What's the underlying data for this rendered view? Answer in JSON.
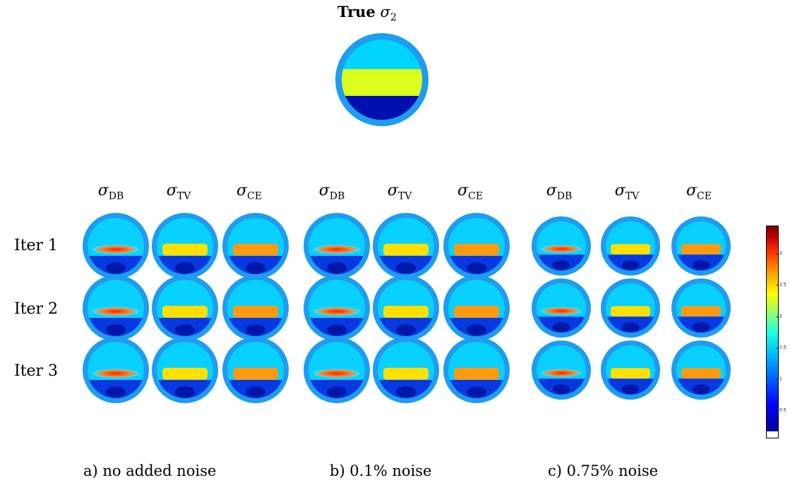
{
  "true_panel": {
    "title_bold": "True",
    "title_symbol": "σ",
    "title_sub": "2"
  },
  "column_headers": [
    {
      "symbol": "σ",
      "sub": "DB"
    },
    {
      "symbol": "σ",
      "sub": "TV"
    },
    {
      "symbol": "σ",
      "sub": "CE"
    },
    {
      "symbol": "σ",
      "sub": "DB"
    },
    {
      "symbol": "σ",
      "sub": "TV"
    },
    {
      "symbol": "σ",
      "sub": "CE"
    },
    {
      "symbol": "σ",
      "sub": "DB"
    },
    {
      "symbol": "σ",
      "sub": "TV"
    },
    {
      "symbol": "σ",
      "sub": "CE"
    }
  ],
  "row_labels": [
    "Iter 1",
    "Iter 2",
    "Iter 3"
  ],
  "captions": [
    "a) no added noise",
    "b) 0.1% noise",
    "c) 0.75% noise"
  ],
  "colorbar": {
    "ticks": [
      "0.5",
      "1",
      "1.5",
      "2",
      "2.5",
      "3"
    ]
  },
  "colors": {
    "ring": "#1e9cf0",
    "background_blue": "#00d4ff",
    "yellow_band": "#e0ff1a",
    "dark_blue": "#0010b0"
  }
}
